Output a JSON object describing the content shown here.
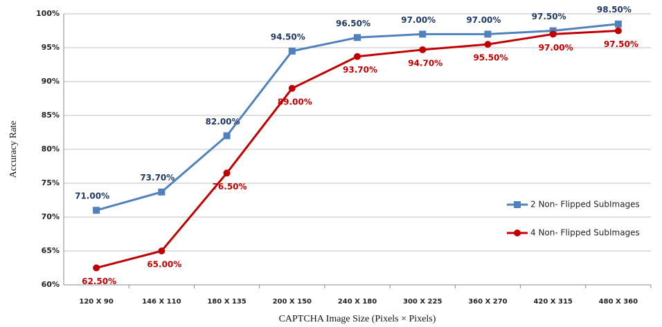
{
  "chart_data": {
    "type": "line",
    "x_label": "CAPTCHA Image Size (Pixels × Pixels)",
    "y_label": "Accuracy Rate",
    "categories": [
      "120 X 90",
      "146 X 110",
      "180 X 135",
      "200 X 150",
      "240 X 180",
      "300 X 225",
      "360 X 270",
      "420 X 315",
      "480 X 360"
    ],
    "series": [
      {
        "name": "2 Non- Flipped SubImages",
        "color": "#4f81bd",
        "marker": "square",
        "values": [
          71,
          73.7,
          82,
          94.5,
          96.5,
          97,
          97,
          97.5,
          98.5
        ],
        "value_labels": [
          "71.00%",
          "73.70%",
          "82.00%",
          "94.50%",
          "96.50%",
          "97.00%",
          "97.00%",
          "97.50%",
          "98.50%"
        ]
      },
      {
        "name": "4 Non- Flipped SubImages",
        "color": "#c00000",
        "marker": "circle",
        "values": [
          62.5,
          65,
          76.5,
          89,
          93.7,
          94.7,
          95.5,
          97,
          97.5
        ],
        "value_labels": [
          "62.50%",
          "65.00%",
          "76.50%",
          "89.00%",
          "93.70%",
          "94.70%",
          "95.50%",
          "97.00%",
          "97.50%"
        ]
      }
    ],
    "ylim": [
      60,
      100
    ],
    "yticks": [
      {
        "value": 60,
        "label": "60%"
      },
      {
        "value": 65,
        "label": "65%"
      },
      {
        "value": 70,
        "label": "70%"
      },
      {
        "value": 75,
        "label": "75%"
      },
      {
        "value": 80,
        "label": "80%"
      },
      {
        "value": 85,
        "label": "85%"
      },
      {
        "value": 90,
        "label": "90%"
      },
      {
        "value": 95,
        "label": "95%"
      },
      {
        "value": 100,
        "label": "100%"
      }
    ],
    "grid": true
  }
}
